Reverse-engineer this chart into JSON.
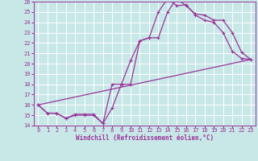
{
  "xlabel": "Windchill (Refroidissement éolien,°C)",
  "xlim": [
    -0.5,
    23.5
  ],
  "ylim": [
    14,
    26
  ],
  "xticks": [
    0,
    1,
    2,
    3,
    4,
    5,
    6,
    7,
    8,
    9,
    10,
    11,
    12,
    13,
    14,
    15,
    16,
    17,
    18,
    19,
    20,
    21,
    22,
    23
  ],
  "yticks": [
    14,
    15,
    16,
    17,
    18,
    19,
    20,
    21,
    22,
    23,
    24,
    25,
    26
  ],
  "bg_color": "#c8e8e8",
  "line_color": "#993399",
  "grid_color": "#ffffff",
  "line1_x": [
    0,
    1,
    2,
    3,
    4,
    5,
    6,
    7,
    8,
    9,
    10,
    11,
    12,
    13,
    14,
    15,
    16,
    17,
    18,
    19,
    20,
    21,
    22,
    23
  ],
  "line1_y": [
    16,
    15.2,
    15.2,
    14.7,
    15,
    15,
    15,
    14.2,
    18,
    18,
    20.3,
    22.2,
    22.5,
    25,
    26.3,
    25.6,
    25.7,
    24.7,
    24.2,
    24,
    23,
    21.2,
    20.5,
    20.4
  ],
  "line2_x": [
    0,
    1,
    2,
    3,
    4,
    5,
    6,
    7,
    8,
    9,
    10,
    11,
    12,
    13,
    14,
    15,
    16,
    17,
    18,
    19,
    20,
    21,
    22,
    23
  ],
  "line2_y": [
    16,
    15.2,
    15.2,
    14.7,
    15.1,
    15.1,
    15.1,
    14.2,
    15.7,
    18,
    18,
    22.2,
    22.5,
    22.5,
    25,
    26.3,
    25.6,
    24.8,
    24.7,
    24.2,
    24.2,
    23,
    21.1,
    20.4
  ],
  "line3_x": [
    0,
    23
  ],
  "line3_y": [
    16,
    20.4
  ],
  "tick_fontsize": 5.0,
  "xlabel_fontsize": 5.5,
  "tick_color": "#993399",
  "spine_color": "#993399"
}
